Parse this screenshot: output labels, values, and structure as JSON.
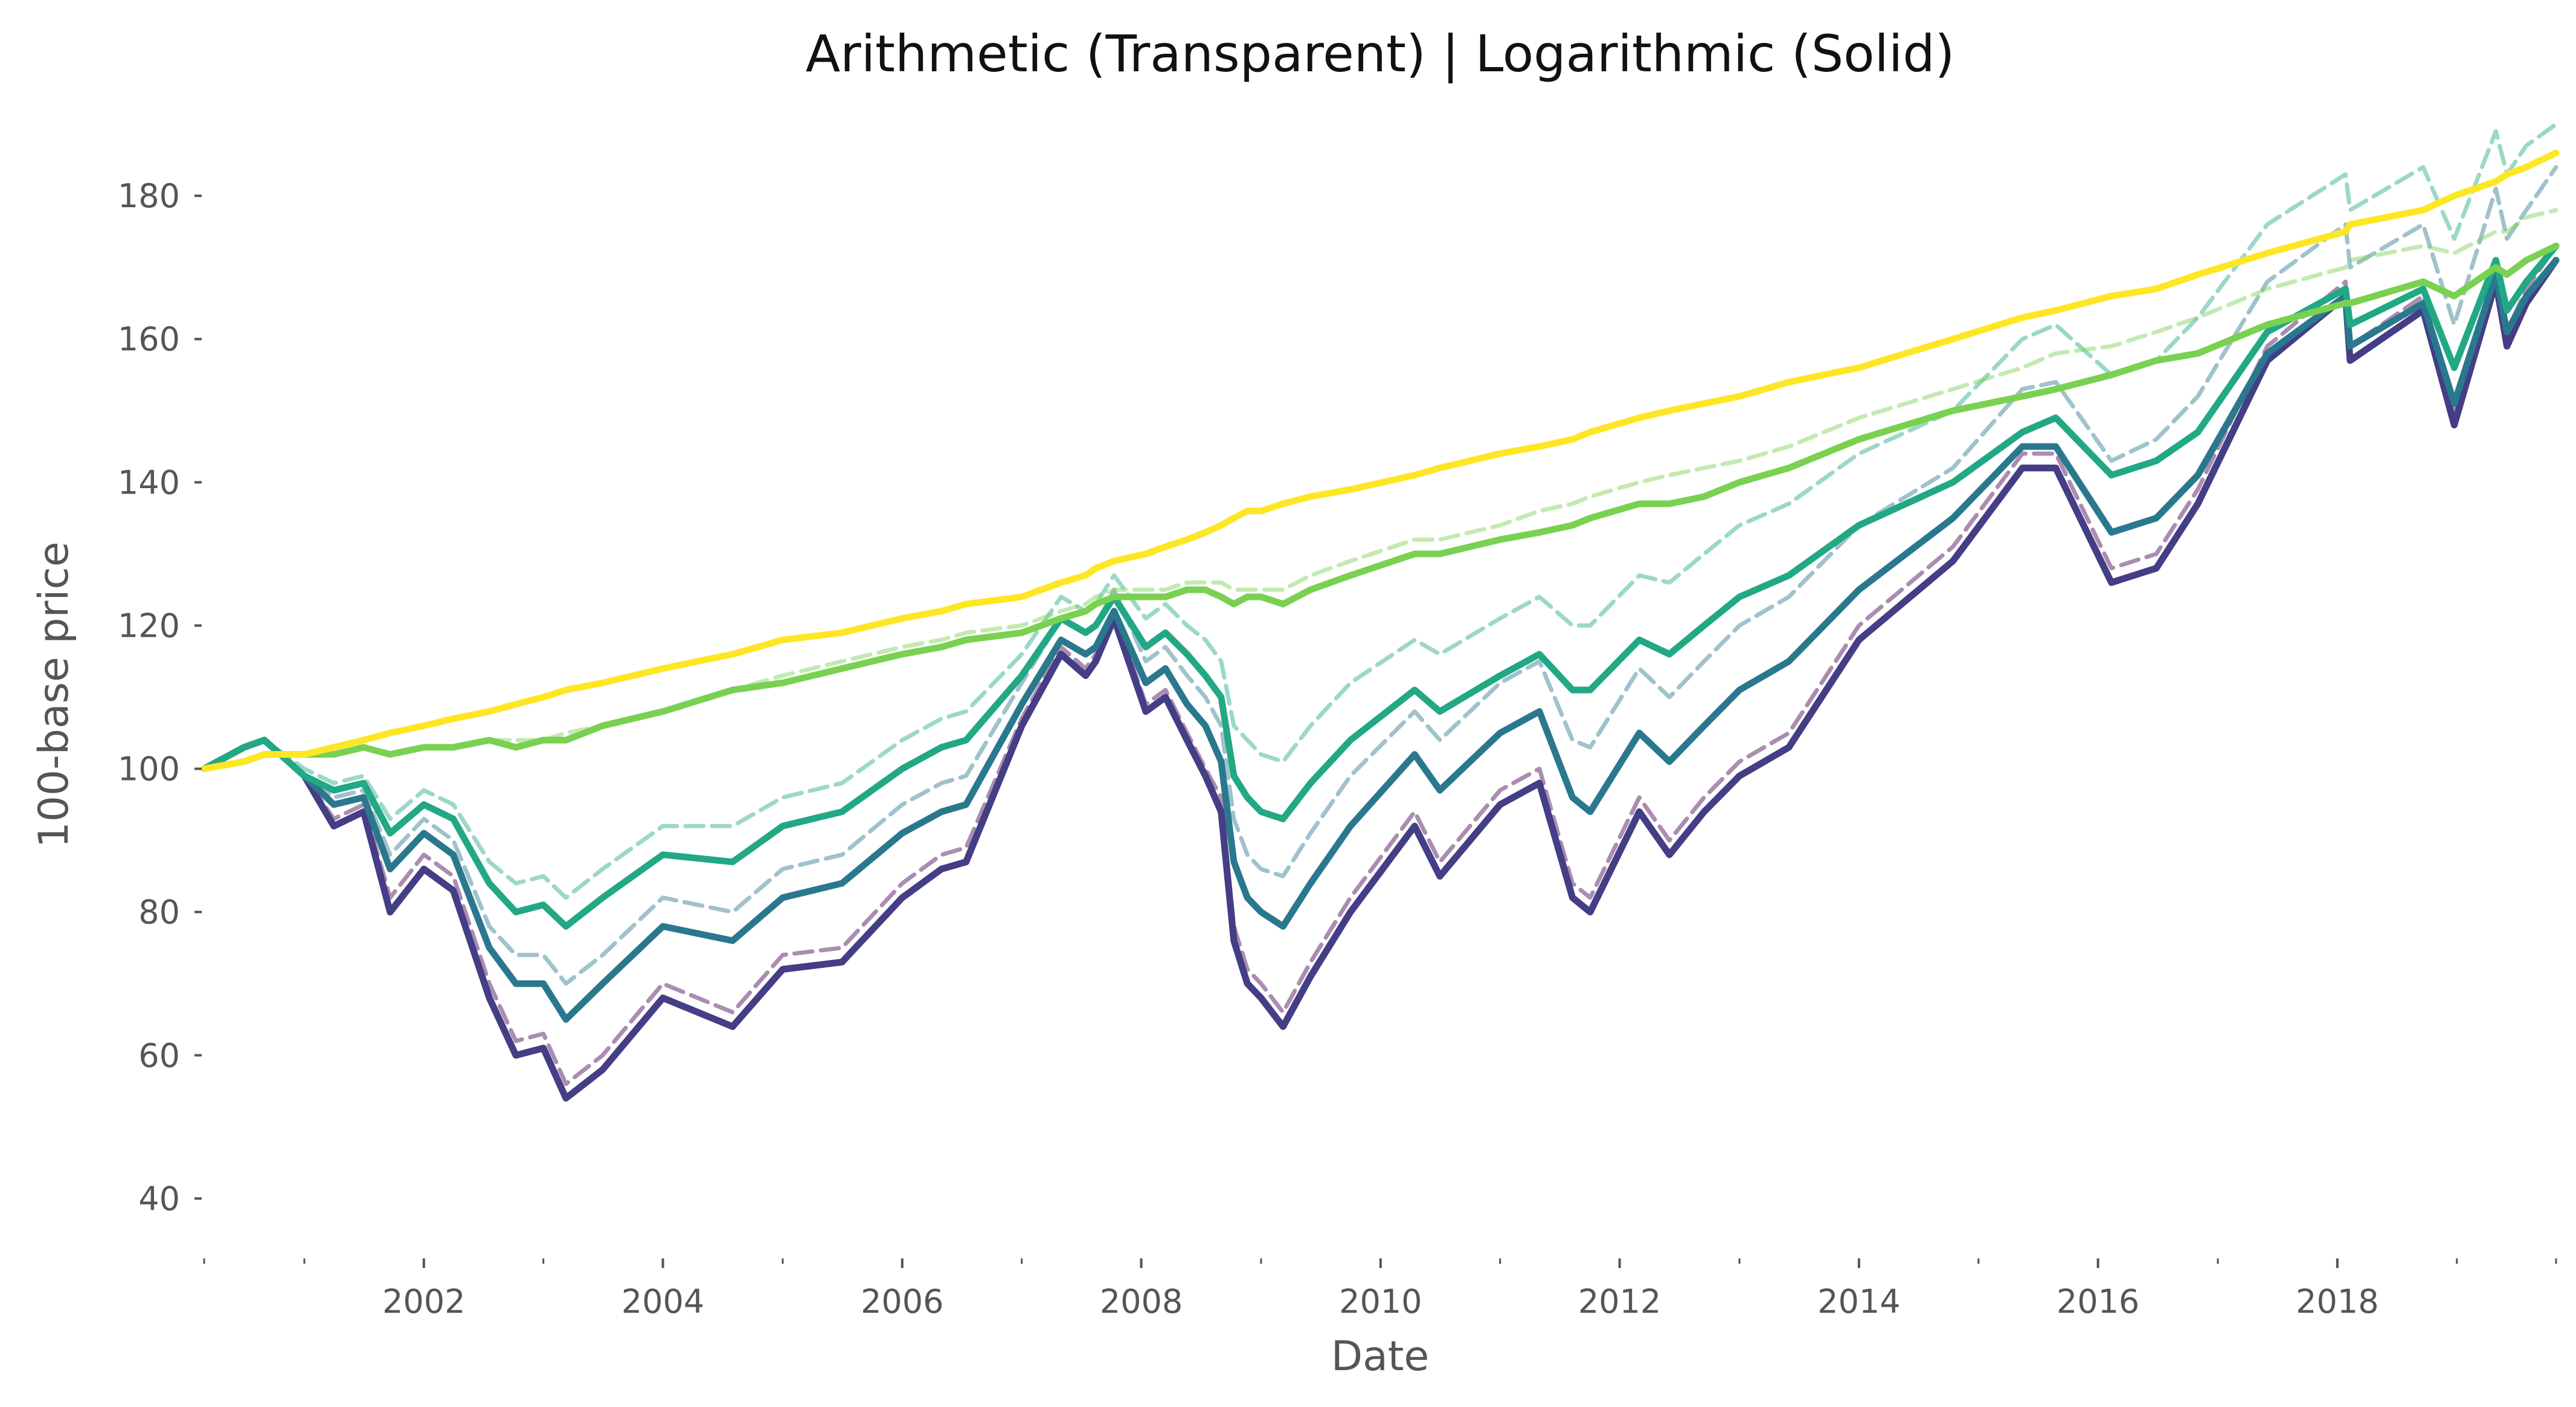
{
  "chart_data": {
    "type": "line",
    "title": "Arithmetic (Transparent) | Logarithmic (Solid)",
    "xlabel": "Date",
    "ylabel": "100-base price",
    "x_axis_type": "date",
    "xlim": [
      "2000-03-01",
      "2019-10-31"
    ],
    "ylim": [
      34,
      193
    ],
    "y_ticks": [
      40,
      60,
      80,
      100,
      120,
      140,
      160,
      180
    ],
    "x_ticks": [
      {
        "date": "2002-01-01",
        "label": "2002"
      },
      {
        "date": "2004-01-01",
        "label": "2004"
      },
      {
        "date": "2006-01-01",
        "label": "2006"
      },
      {
        "date": "2008-01-01",
        "label": "2008"
      },
      {
        "date": "2010-01-01",
        "label": "2010"
      },
      {
        "date": "2012-01-01",
        "label": "2012"
      },
      {
        "date": "2014-01-01",
        "label": "2014"
      },
      {
        "date": "2016-01-01",
        "label": "2016"
      },
      {
        "date": "2018-01-01",
        "label": "2018"
      }
    ],
    "x_minor_ticks": [
      "2000-03-01",
      "2001-01-01",
      "2003-01-01",
      "2005-01-01",
      "2007-01-01",
      "2009-01-01",
      "2011-01-01",
      "2013-01-01",
      "2015-01-01",
      "2017-01-01",
      "2019-01-01",
      "2019-10-31"
    ],
    "grid": false,
    "legend": "none",
    "styles": {
      "logarithmic": "solid",
      "arithmetic": "dashed, transparent"
    },
    "dates": [
      "2000-03-01",
      "2000-07-01",
      "2000-09-01",
      "2001-01-01",
      "2001-04-01",
      "2001-07-01",
      "2001-09-20",
      "2002-01-01",
      "2002-04-01",
      "2002-07-20",
      "2002-10-09",
      "2003-01-01",
      "2003-03-11",
      "2003-07-01",
      "2004-01-01",
      "2004-08-01",
      "2005-01-01",
      "2005-07-01",
      "2006-01-01",
      "2006-05-01",
      "2006-07-15",
      "2007-01-01",
      "2007-05-01",
      "2007-07-15",
      "2007-08-15",
      "2007-10-10",
      "2008-01-15",
      "2008-03-15",
      "2008-05-20",
      "2008-07-15",
      "2008-09-01",
      "2008-10-10",
      "2008-11-20",
      "2009-01-01",
      "2009-03-09",
      "2009-06-01",
      "2009-10-01",
      "2010-04-15",
      "2010-07-01",
      "2011-01-01",
      "2011-05-01",
      "2011-08-10",
      "2011-10-03",
      "2012-03-01",
      "2012-06-01",
      "2012-09-15",
      "2013-01-01",
      "2013-06-01",
      "2014-01-01",
      "2014-10-15",
      "2015-05-15",
      "2015-08-25",
      "2016-02-11",
      "2016-06-27",
      "2016-11-01",
      "2017-06-01",
      "2018-01-26",
      "2018-02-09",
      "2018-09-20",
      "2018-12-24",
      "2019-04-30",
      "2019-06-03",
      "2019-08-01",
      "2019-10-31"
    ],
    "series": [
      {
        "color": "#440154",
        "style": "solid",
        "values": [
          100,
          103,
          104,
          99,
          92,
          94,
          80,
          86,
          83,
          68,
          60,
          61,
          54,
          58,
          68,
          64,
          72,
          73,
          82,
          86,
          87,
          106,
          116,
          113,
          115,
          121,
          108,
          110,
          104,
          99,
          94,
          76,
          70,
          68,
          64,
          71,
          80,
          92,
          85,
          95,
          98,
          82,
          80,
          94,
          88,
          94,
          99,
          103,
          118,
          129,
          142,
          142,
          126,
          128,
          137,
          157,
          166,
          157,
          164,
          148,
          168,
          159,
          165,
          171
        ]
      },
      {
        "color": "#433e85",
        "style": "solid",
        "values": [
          100,
          103,
          104,
          99,
          92,
          94,
          80,
          86,
          83,
          68,
          60,
          61,
          54,
          58,
          68,
          64,
          72,
          73,
          82,
          86,
          87,
          106,
          116,
          113,
          115,
          121,
          108,
          110,
          104,
          99,
          94,
          76,
          70,
          68,
          64,
          71,
          80,
          92,
          85,
          95,
          98,
          82,
          80,
          94,
          88,
          94,
          99,
          103,
          118,
          129,
          142,
          142,
          126,
          128,
          137,
          157,
          166,
          157,
          164,
          148,
          168,
          159,
          165,
          171
        ]
      },
      {
        "color": "#2a788e",
        "style": "solid",
        "values": [
          100,
          103,
          104,
          99,
          95,
          96,
          86,
          91,
          88,
          75,
          70,
          70,
          65,
          70,
          78,
          76,
          82,
          84,
          91,
          94,
          95,
          109,
          118,
          116,
          117,
          122,
          112,
          114,
          109,
          106,
          101,
          87,
          82,
          80,
          78,
          84,
          92,
          102,
          97,
          105,
          108,
          96,
          94,
          105,
          101,
          106,
          111,
          115,
          125,
          135,
          145,
          145,
          133,
          135,
          141,
          158,
          166,
          159,
          165,
          151,
          169,
          161,
          166,
          171
        ]
      },
      {
        "color": "#22a884",
        "style": "solid",
        "values": [
          100,
          103,
          104,
          99,
          97,
          98,
          91,
          95,
          93,
          84,
          80,
          81,
          78,
          82,
          88,
          87,
          92,
          94,
          100,
          103,
          104,
          113,
          121,
          119,
          120,
          124,
          117,
          119,
          116,
          113,
          110,
          99,
          96,
          94,
          93,
          98,
          104,
          111,
          108,
          113,
          116,
          111,
          111,
          118,
          116,
          120,
          124,
          127,
          134,
          140,
          147,
          149,
          141,
          143,
          147,
          161,
          167,
          162,
          167,
          156,
          171,
          164,
          168,
          173
        ]
      },
      {
        "color": "#7ad151",
        "style": "solid",
        "values": [
          100,
          101,
          102,
          102,
          102,
          103,
          102,
          103,
          103,
          104,
          103,
          104,
          104,
          106,
          108,
          111,
          112,
          114,
          116,
          117,
          118,
          119,
          121,
          122,
          123,
          124,
          124,
          124,
          125,
          125,
          124,
          123,
          124,
          124,
          123,
          125,
          127,
          130,
          130,
          132,
          133,
          134,
          135,
          137,
          137,
          138,
          140,
          142,
          146,
          150,
          152,
          153,
          155,
          157,
          158,
          162,
          165,
          165,
          168,
          166,
          170,
          169,
          171,
          173
        ]
      },
      {
        "color": "#fde725",
        "style": "solid",
        "values": [
          100,
          101,
          102,
          102,
          103,
          104,
          105,
          106,
          107,
          108,
          109,
          110,
          111,
          112,
          114,
          116,
          118,
          119,
          121,
          122,
          123,
          124,
          126,
          127,
          128,
          129,
          130,
          131,
          132,
          133,
          134,
          135,
          136,
          136,
          137,
          138,
          139,
          141,
          142,
          144,
          145,
          146,
          147,
          149,
          150,
          151,
          152,
          154,
          156,
          160,
          163,
          164,
          166,
          167,
          169,
          172,
          175,
          176,
          178,
          180,
          182,
          183,
          184,
          186
        ]
      },
      {
        "color": "#440154",
        "style": "dashed",
        "values": [
          100,
          103,
          104,
          99,
          93,
          95,
          82,
          88,
          85,
          70,
          62,
          63,
          56,
          60,
          70,
          66,
          74,
          75,
          84,
          88,
          89,
          107,
          117,
          114,
          116,
          122,
          109,
          111,
          105,
          100,
          96,
          78,
          72,
          70,
          66,
          73,
          82,
          94,
          87,
          97,
          100,
          84,
          82,
          96,
          90,
          96,
          101,
          105,
          120,
          131,
          144,
          144,
          128,
          130,
          139,
          159,
          168,
          159,
          166,
          150,
          170,
          161,
          167,
          173
        ]
      },
      {
        "color": "#2a788e",
        "style": "dashed",
        "values": [
          100,
          103,
          104,
          99,
          96,
          97,
          88,
          93,
          90,
          78,
          74,
          74,
          70,
          74,
          82,
          80,
          86,
          88,
          95,
          98,
          99,
          112,
          121,
          119,
          120,
          125,
          115,
          117,
          113,
          110,
          106,
          93,
          88,
          86,
          85,
          91,
          99,
          108,
          104,
          112,
          115,
          104,
          103,
          114,
          110,
          115,
          120,
          124,
          134,
          142,
          153,
          154,
          143,
          146,
          152,
          168,
          176,
          170,
          176,
          162,
          181,
          174,
          178,
          184
        ]
      },
      {
        "color": "#22a884",
        "style": "dashed",
        "values": [
          100,
          103,
          104,
          100,
          98,
          99,
          93,
          97,
          95,
          87,
          84,
          85,
          82,
          86,
          92,
          92,
          96,
          98,
          104,
          107,
          108,
          116,
          124,
          122,
          123,
          127,
          121,
          123,
          120,
          118,
          115,
          106,
          104,
          102,
          101,
          106,
          112,
          118,
          116,
          121,
          124,
          120,
          120,
          127,
          126,
          130,
          134,
          137,
          144,
          150,
          160,
          162,
          155,
          157,
          163,
          176,
          183,
          178,
          184,
          174,
          189,
          183,
          187,
          190
        ]
      },
      {
        "color": "#7ad151",
        "style": "dashed",
        "values": [
          100,
          101,
          102,
          102,
          102,
          103,
          102,
          103,
          103,
          104,
          104,
          104,
          105,
          106,
          108,
          111,
          113,
          115,
          117,
          118,
          119,
          120,
          122,
          123,
          124,
          125,
          125,
          125,
          126,
          126,
          126,
          125,
          125,
          125,
          125,
          127,
          129,
          132,
          132,
          134,
          136,
          137,
          138,
          140,
          141,
          142,
          143,
          145,
          149,
          153,
          156,
          158,
          159,
          161,
          163,
          167,
          170,
          171,
          173,
          172,
          175,
          175,
          177,
          178
        ]
      }
    ]
  }
}
